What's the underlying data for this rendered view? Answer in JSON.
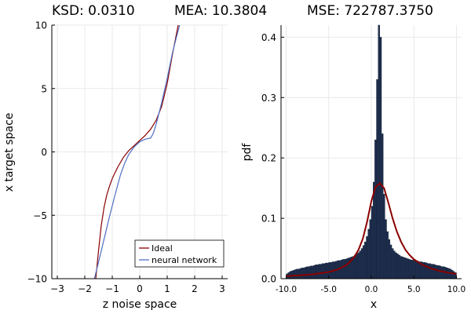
{
  "title": {
    "ksd": "KSD: 0.0310",
    "mea": "MEA: 10.3804",
    "mse": "MSE: 722787.3750"
  },
  "chart_data": [
    {
      "type": "line",
      "xlabel": "z noise space",
      "ylabel": "x target space",
      "xlim": [
        -3.2,
        3.2
      ],
      "ylim": [
        -10,
        10
      ],
      "xticks": [
        -3,
        -2,
        -1,
        0,
        1,
        2,
        3
      ],
      "xtick_labels": [
        "−3",
        "−2",
        "−1",
        "0",
        "1",
        "2",
        "3"
      ],
      "yticks": [
        -10,
        -5,
        0,
        5,
        10
      ],
      "ytick_labels": [
        "−10",
        "−5",
        "0",
        "5",
        "10"
      ],
      "grid": true,
      "legend_position": "bottom-right",
      "series": [
        {
          "name": "Ideal",
          "color": "#8b0000",
          "x": [
            -1.6,
            -1.5,
            -1.4,
            -1.3,
            -1.2,
            -1.1,
            -1.0,
            -0.8,
            -0.6,
            -0.4,
            -0.2,
            0.0,
            0.2,
            0.4,
            0.6,
            0.8,
            1.0,
            1.2,
            1.4
          ],
          "y": [
            -10.0,
            -7.8,
            -5.8,
            -4.4,
            -3.4,
            -2.7,
            -2.1,
            -1.2,
            -0.45,
            0.1,
            0.5,
            0.9,
            1.3,
            1.8,
            2.5,
            3.6,
            5.4,
            7.8,
            10.0
          ]
        },
        {
          "name": "neural network",
          "color": "#4f6fc4",
          "x": [
            -1.65,
            -1.5,
            -1.3,
            -1.1,
            -0.9,
            -0.7,
            -0.55,
            -0.4,
            -0.2,
            0.0,
            0.2,
            0.4,
            0.5,
            0.6,
            0.8,
            1.0,
            1.2,
            1.45
          ],
          "y": [
            -10.0,
            -8.7,
            -6.9,
            -5.1,
            -3.4,
            -1.8,
            -0.9,
            -0.2,
            0.4,
            0.8,
            1.0,
            1.1,
            1.5,
            2.2,
            3.9,
            5.8,
            7.9,
            10.0
          ]
        }
      ]
    },
    {
      "type": "bar",
      "xlabel": "x",
      "ylabel": "pdf",
      "xlim": [
        -10.6,
        10.6
      ],
      "ylim": [
        0,
        0.42
      ],
      "xticks": [
        -10,
        -5,
        0,
        5,
        10
      ],
      "xtick_labels": [
        "-10.0",
        "-5.0",
        "0.0",
        "5.0",
        "10.0"
      ],
      "yticks": [
        0,
        0.1,
        0.2,
        0.3,
        0.4
      ],
      "ytick_labels": [
        "0.0",
        "0.1",
        "0.2",
        "0.3",
        "0.4"
      ],
      "grid": true,
      "bar_color": "#1f2f4f",
      "curve_color": "#8b0000",
      "bin_width": 0.2,
      "bins_start": -10.0,
      "values": [
        0.008,
        0.01,
        0.012,
        0.013,
        0.014,
        0.015,
        0.016,
        0.016,
        0.017,
        0.018,
        0.018,
        0.019,
        0.02,
        0.02,
        0.021,
        0.021,
        0.022,
        0.023,
        0.023,
        0.024,
        0.024,
        0.025,
        0.025,
        0.026,
        0.026,
        0.027,
        0.027,
        0.028,
        0.028,
        0.029,
        0.03,
        0.03,
        0.031,
        0.032,
        0.032,
        0.033,
        0.034,
        0.035,
        0.036,
        0.037,
        0.039,
        0.041,
        0.043,
        0.046,
        0.05,
        0.055,
        0.061,
        0.07,
        0.082,
        0.098,
        0.12,
        0.16,
        0.23,
        0.33,
        0.44,
        0.4,
        0.24,
        0.14,
        0.098,
        0.078,
        0.065,
        0.056,
        0.05,
        0.046,
        0.043,
        0.041,
        0.039,
        0.037,
        0.036,
        0.035,
        0.034,
        0.033,
        0.032,
        0.031,
        0.031,
        0.03,
        0.03,
        0.029,
        0.028,
        0.028,
        0.027,
        0.027,
        0.026,
        0.025,
        0.025,
        0.024,
        0.024,
        0.023,
        0.022,
        0.022,
        0.021,
        0.02,
        0.02,
        0.019,
        0.018,
        0.017,
        0.016,
        0.014,
        0.012,
        0.01
      ],
      "curve": {
        "x": [
          -10.0,
          -9.0,
          -8.0,
          -7.0,
          -6.0,
          -5.0,
          -4.0,
          -3.0,
          -2.5,
          -2.0,
          -1.5,
          -1.0,
          -0.5,
          0.0,
          0.5,
          1.0,
          1.5,
          2.0,
          2.5,
          3.0,
          3.5,
          4.0,
          4.5,
          5.0,
          6.0,
          7.0,
          8.0,
          9.0,
          10.0
        ],
        "y": [
          0.004,
          0.005,
          0.006,
          0.007,
          0.009,
          0.011,
          0.015,
          0.022,
          0.028,
          0.036,
          0.048,
          0.066,
          0.094,
          0.128,
          0.152,
          0.158,
          0.15,
          0.126,
          0.1,
          0.078,
          0.061,
          0.048,
          0.039,
          0.032,
          0.023,
          0.017,
          0.013,
          0.01,
          0.008
        ]
      }
    }
  ]
}
